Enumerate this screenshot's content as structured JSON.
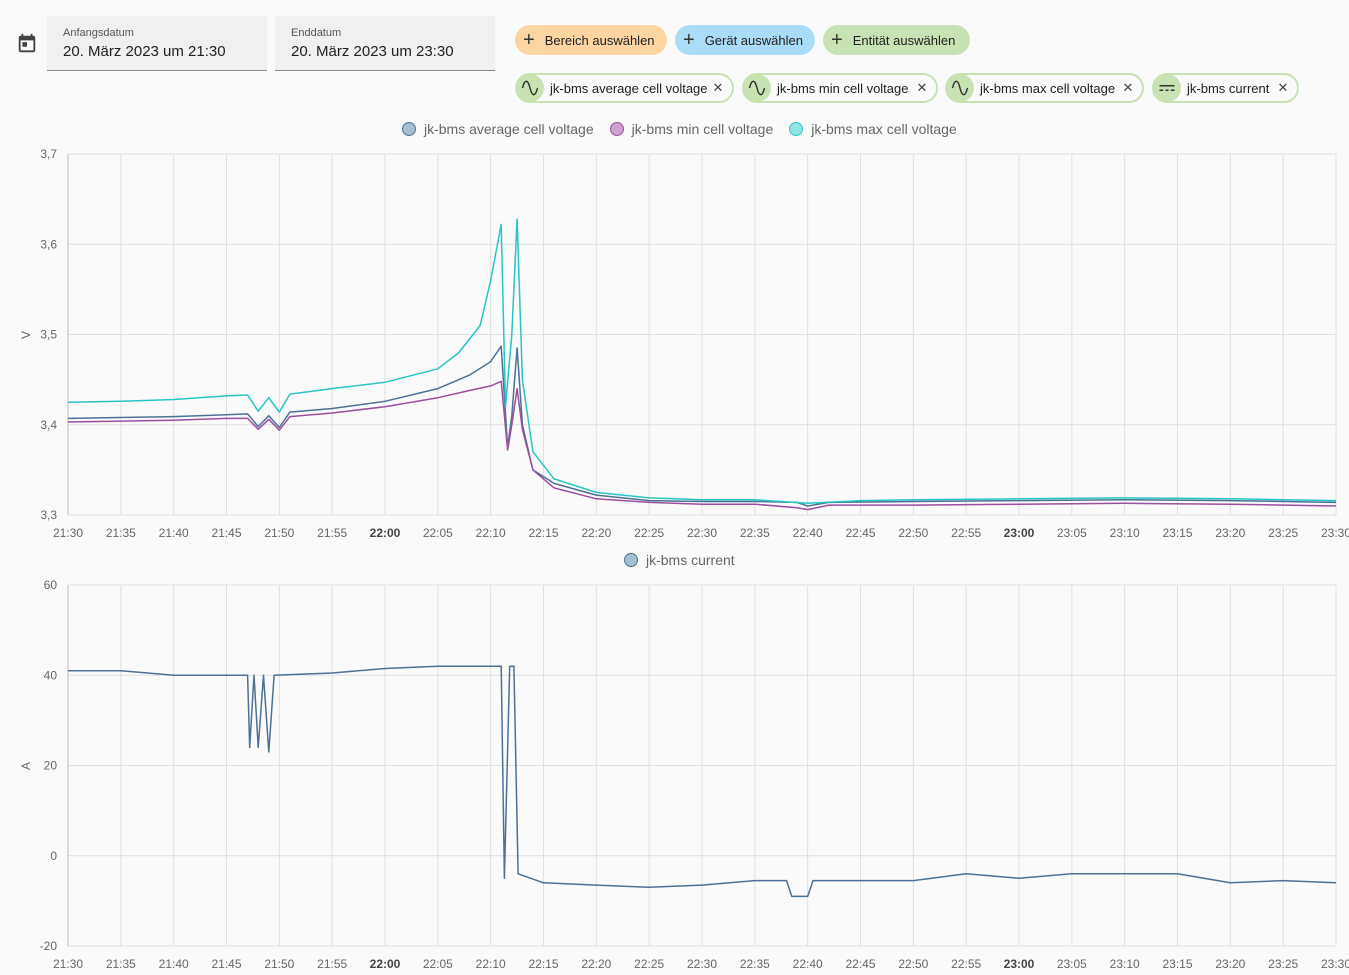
{
  "date_range": {
    "start_label": "Anfangsdatum",
    "start_value": "20. März 2023 um 21:30",
    "end_label": "Enddatum",
    "end_value": "20. März 2023 um 23:30",
    "calendar_icon": "calendar-icon"
  },
  "target_picker": {
    "area_label": "Bereich auswählen",
    "device_label": "Gerät auswählen",
    "entity_label": "Entität auswählen",
    "add_icon": "plus-icon",
    "colors": {
      "area": "#fdd5a2",
      "device": "#a9dcf6",
      "entity": "#c9e2b3"
    }
  },
  "entities": [
    {
      "name": "jk-bms average cell voltage",
      "icon": "sine-wave-icon"
    },
    {
      "name": "jk-bms min cell voltage",
      "icon": "sine-wave-icon"
    },
    {
      "name": "jk-bms max cell voltage",
      "icon": "sine-wave-icon"
    },
    {
      "name": "jk-bms current",
      "icon": "current-dc-icon"
    }
  ],
  "x_ticks": [
    "21:30",
    "21:35",
    "21:40",
    "21:45",
    "21:50",
    "21:55",
    "22:00",
    "22:05",
    "22:10",
    "22:15",
    "22:20",
    "22:25",
    "22:30",
    "22:35",
    "22:40",
    "22:45",
    "22:50",
    "22:55",
    "23:00",
    "23:05",
    "23:10",
    "23:15",
    "23:20",
    "23:25",
    "23:30"
  ],
  "x_bold_ticks": [
    "22:00",
    "23:00"
  ],
  "chart_data": [
    {
      "type": "line",
      "ylabel": "V",
      "ylim": [
        3.3,
        3.7
      ],
      "yticks": [
        "3,3",
        "3,4",
        "3,5",
        "3,6",
        "3,7"
      ],
      "x_range": [
        "21:30",
        "23:30"
      ],
      "grid": true,
      "legend_position": "top-center",
      "series": [
        {
          "name": "jk-bms average cell voltage",
          "color": "#4c7194",
          "points": [
            [
              "21:30",
              3.407
            ],
            [
              "21:35",
              3.408
            ],
            [
              "21:40",
              3.409
            ],
            [
              "21:45",
              3.411
            ],
            [
              "21:47",
              3.412
            ],
            [
              "21:48",
              3.398
            ],
            [
              "21:49",
              3.41
            ],
            [
              "21:50",
              3.397
            ],
            [
              "21:51",
              3.414
            ],
            [
              "21:55",
              3.418
            ],
            [
              "22:00",
              3.426
            ],
            [
              "22:05",
              3.44
            ],
            [
              "22:08",
              3.455
            ],
            [
              "22:10",
              3.47
            ],
            [
              "22:11",
              3.487
            ],
            [
              "22:11.6",
              3.375
            ],
            [
              "22:12",
              3.41
            ],
            [
              "22:12.5",
              3.485
            ],
            [
              "22:13",
              3.4
            ],
            [
              "22:14",
              3.35
            ],
            [
              "22:16",
              3.335
            ],
            [
              "22:20",
              3.322
            ],
            [
              "22:25",
              3.316
            ],
            [
              "22:30",
              3.315
            ],
            [
              "22:35",
              3.315
            ],
            [
              "22:39",
              3.314
            ],
            [
              "22:40",
              3.31
            ],
            [
              "22:42",
              3.314
            ],
            [
              "22:50",
              3.315
            ],
            [
              "23:00",
              3.316
            ],
            [
              "23:10",
              3.317
            ],
            [
              "23:20",
              3.316
            ],
            [
              "23:30",
              3.314
            ]
          ]
        },
        {
          "name": "jk-bms min cell voltage",
          "color": "#9b4f9f",
          "points": [
            [
              "21:30",
              3.403
            ],
            [
              "21:35",
              3.404
            ],
            [
              "21:40",
              3.405
            ],
            [
              "21:45",
              3.407
            ],
            [
              "21:47",
              3.407
            ],
            [
              "21:48",
              3.395
            ],
            [
              "21:49",
              3.406
            ],
            [
              "21:50",
              3.394
            ],
            [
              "21:51",
              3.409
            ],
            [
              "21:55",
              3.413
            ],
            [
              "22:00",
              3.42
            ],
            [
              "22:05",
              3.43
            ],
            [
              "22:08",
              3.438
            ],
            [
              "22:10",
              3.443
            ],
            [
              "22:11",
              3.448
            ],
            [
              "22:11.6",
              3.372
            ],
            [
              "22:12",
              3.4
            ],
            [
              "22:12.5",
              3.44
            ],
            [
              "22:13",
              3.395
            ],
            [
              "22:14",
              3.35
            ],
            [
              "22:16",
              3.33
            ],
            [
              "22:20",
              3.318
            ],
            [
              "22:25",
              3.314
            ],
            [
              "22:30",
              3.312
            ],
            [
              "22:35",
              3.312
            ],
            [
              "22:39",
              3.308
            ],
            [
              "22:40",
              3.306
            ],
            [
              "22:42",
              3.311
            ],
            [
              "22:50",
              3.311
            ],
            [
              "23:00",
              3.312
            ],
            [
              "23:10",
              3.313
            ],
            [
              "23:20",
              3.312
            ],
            [
              "23:30",
              3.31
            ]
          ]
        },
        {
          "name": "jk-bms max cell voltage",
          "color": "#27c6c4",
          "points": [
            [
              "21:30",
              3.425
            ],
            [
              "21:35",
              3.426
            ],
            [
              "21:40",
              3.428
            ],
            [
              "21:45",
              3.432
            ],
            [
              "21:47",
              3.433
            ],
            [
              "21:48",
              3.415
            ],
            [
              "21:49",
              3.43
            ],
            [
              "21:50",
              3.414
            ],
            [
              "21:51",
              3.434
            ],
            [
              "21:55",
              3.44
            ],
            [
              "22:00",
              3.447
            ],
            [
              "22:05",
              3.462
            ],
            [
              "22:07",
              3.48
            ],
            [
              "22:09",
              3.51
            ],
            [
              "22:10",
              3.56
            ],
            [
              "22:11",
              3.622
            ],
            [
              "22:11.4",
              3.42
            ],
            [
              "22:12",
              3.5
            ],
            [
              "22:12.5",
              3.628
            ],
            [
              "22:13",
              3.45
            ],
            [
              "22:14",
              3.37
            ],
            [
              "22:16",
              3.34
            ],
            [
              "22:20",
              3.325
            ],
            [
              "22:25",
              3.319
            ],
            [
              "22:30",
              3.317
            ],
            [
              "22:35",
              3.317
            ],
            [
              "22:40",
              3.313
            ],
            [
              "22:45",
              3.316
            ],
            [
              "22:50",
              3.317
            ],
            [
              "23:00",
              3.318
            ],
            [
              "23:10",
              3.319
            ],
            [
              "23:20",
              3.318
            ],
            [
              "23:30",
              3.316
            ]
          ]
        }
      ]
    },
    {
      "type": "line",
      "ylabel": "A",
      "ylim": [
        -20,
        60
      ],
      "yticks": [
        "-20",
        "0",
        "20",
        "40",
        "60"
      ],
      "x_range": [
        "21:30",
        "23:30"
      ],
      "grid": true,
      "legend_position": "top-center",
      "series": [
        {
          "name": "jk-bms current",
          "color": "#4c7194",
          "points": [
            [
              "21:30",
              41
            ],
            [
              "21:35",
              41
            ],
            [
              "21:40",
              40
            ],
            [
              "21:45",
              40
            ],
            [
              "21:47",
              40
            ],
            [
              "21:47.2",
              24
            ],
            [
              "21:47.6",
              40
            ],
            [
              "21:48",
              24
            ],
            [
              "21:48.5",
              40
            ],
            [
              "21:49",
              23
            ],
            [
              "21:49.5",
              40
            ],
            [
              "21:55",
              40.5
            ],
            [
              "22:00",
              41.5
            ],
            [
              "22:05",
              42
            ],
            [
              "22:10",
              42
            ],
            [
              "22:11",
              42
            ],
            [
              "22:11.3",
              -5
            ],
            [
              "22:11.8",
              42
            ],
            [
              "22:12.2",
              42
            ],
            [
              "22:12.6",
              -4
            ],
            [
              "22:15",
              -6
            ],
            [
              "22:20",
              -6.5
            ],
            [
              "22:25",
              -7
            ],
            [
              "22:30",
              -6.5
            ],
            [
              "22:35",
              -5.5
            ],
            [
              "22:38",
              -5.5
            ],
            [
              "22:38.5",
              -9
            ],
            [
              "22:40",
              -9
            ],
            [
              "22:40.5",
              -5.5
            ],
            [
              "22:45",
              -5.5
            ],
            [
              "22:50",
              -5.5
            ],
            [
              "22:55",
              -4
            ],
            [
              "23:00",
              -5
            ],
            [
              "23:05",
              -4
            ],
            [
              "23:10",
              -4
            ],
            [
              "23:15",
              -4
            ],
            [
              "23:20",
              -6
            ],
            [
              "23:25",
              -5.5
            ],
            [
              "23:30",
              -6
            ]
          ]
        }
      ]
    }
  ]
}
